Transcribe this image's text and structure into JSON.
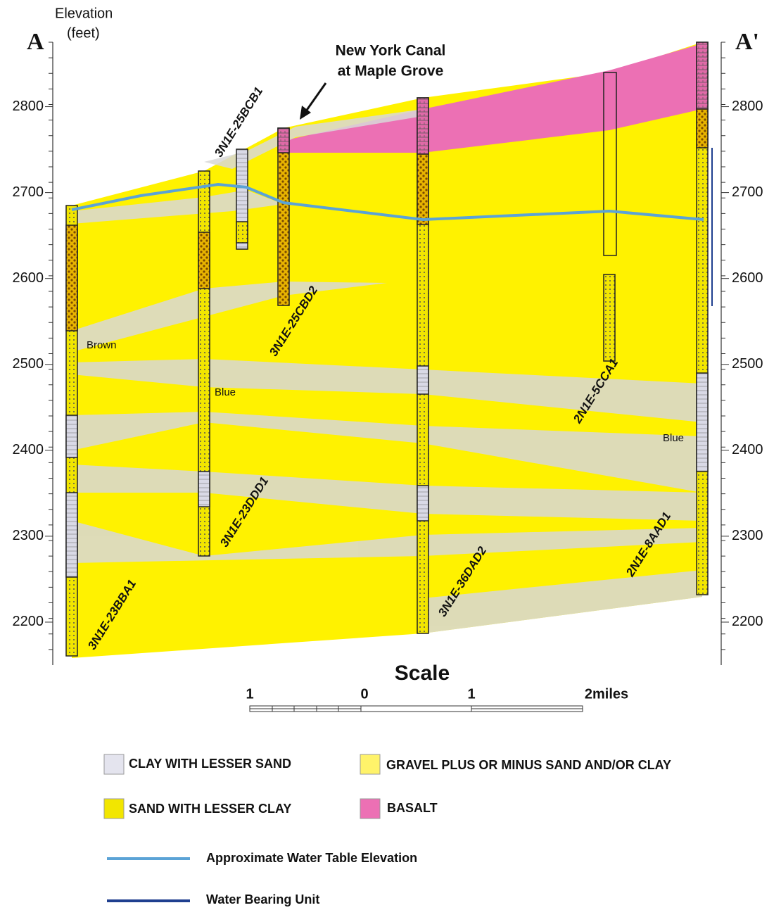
{
  "axis_label": [
    "Elevation",
    "(feet)"
  ],
  "section_start": "A",
  "section_end": "A'",
  "elevation_lim": [
    2150,
    2875
  ],
  "elevation_ticks": [
    2200,
    2300,
    2400,
    2500,
    2600,
    2700,
    2800
  ],
  "annotation": [
    "New York Canal",
    "at Maple Grove"
  ],
  "layer_notes": [
    "Brown",
    "Blue",
    "Blue"
  ],
  "wells": [
    "3N1E-23BBA1",
    "3N1E-23DDD1",
    "3N1E-25BCB1",
    "3N1E-25CBD2",
    "3N1E-36DAD2",
    "2N1E-5CCA1",
    "2N1E-8AAD1"
  ],
  "scale": {
    "title": "Scale",
    "labels": [
      "1",
      "0",
      "1",
      "2miles"
    ]
  },
  "legend": [
    "CLAY WITH LESSER SAND",
    "GRAVEL PLUS OR MINUS SAND AND/OR CLAY",
    "SAND WITH LESSER CLAY",
    "BASALT",
    "Approximate Water Table Elevation",
    "Water Bearing Unit"
  ]
}
